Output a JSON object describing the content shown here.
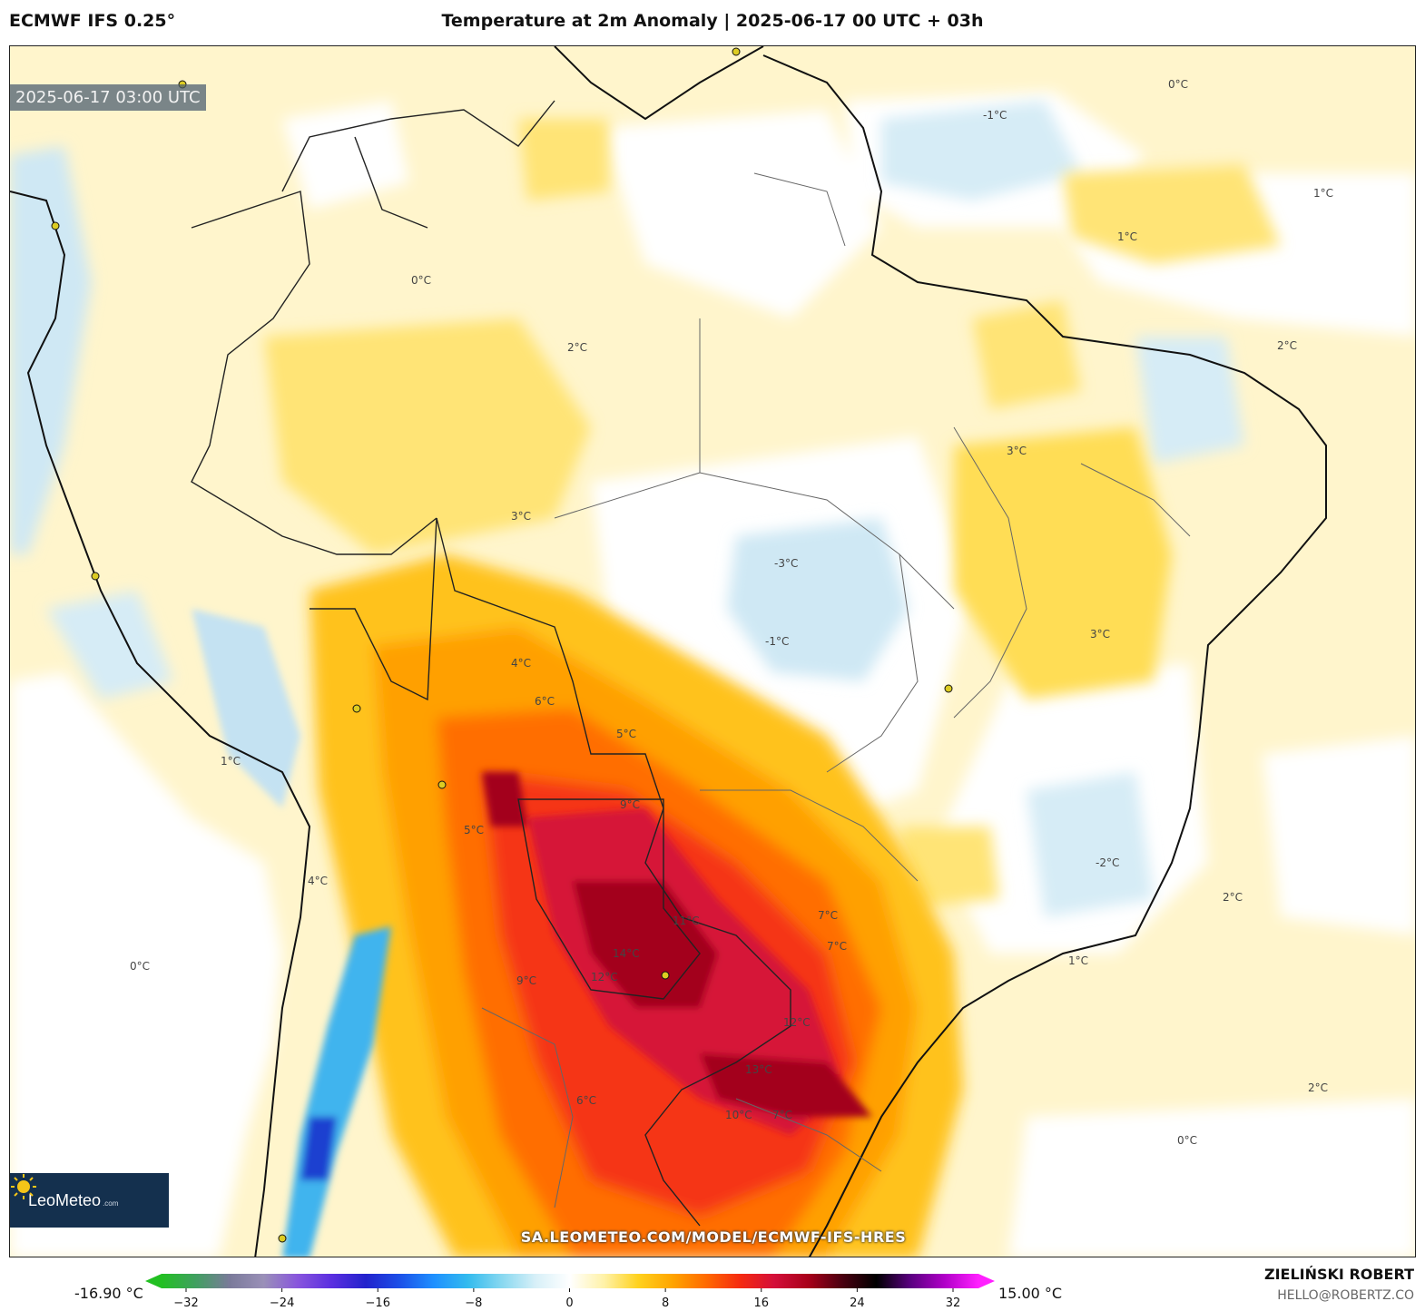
{
  "header": {
    "model": "ECMWF IFS 0.25°",
    "title": "Temperature at 2m Anomaly | 2025-06-17 00 UTC + 03h"
  },
  "map": {
    "timestamp": "2025-06-17 03:00 UTC",
    "watermark_url": "SA.LEOMETEO.COM/MODEL/ECMWF-IFS-HRES",
    "logo": {
      "name": "LeoMeteo",
      "suffix": ".com"
    },
    "contour_labels": [
      "14°C",
      "13°C",
      "12°C",
      "12°C",
      "11°C",
      "10°C",
      "9°C",
      "9°C",
      "7°C",
      "7°C",
      "7°C",
      "6°C",
      "6°C",
      "5°C",
      "5°C",
      "4°C",
      "4°C",
      "3°C",
      "3°C",
      "3°C",
      "2°C",
      "2°C",
      "2°C",
      "2°C",
      "1°C",
      "1°C",
      "1°C",
      "1°C",
      "0°C",
      "0°C",
      "0°C",
      "0°C",
      "-1°C",
      "-1°C",
      "-2°C",
      "-3°C"
    ]
  },
  "colorbar": {
    "min_label": "-16.90 °C",
    "max_label": "15.00 °C",
    "ticks": [
      "−32",
      "−24",
      "−16",
      "−8",
      "0",
      "8",
      "16",
      "24",
      "32"
    ],
    "stops": [
      "#22c022",
      "#40a060",
      "#7a7a9a",
      "#9a90b8",
      "#8855dd",
      "#5a2ee0",
      "#2222cc",
      "#1c50e8",
      "#1e90ff",
      "#33bbee",
      "#88d8f0",
      "#d8f0f8",
      "#ffffff",
      "#fff2a8",
      "#ffd21e",
      "#ffa500",
      "#ff6a00",
      "#f52a10",
      "#d40f3a",
      "#a8001a",
      "#4a0010",
      "#000000",
      "#5a0080",
      "#b000c8",
      "#ff20ff"
    ]
  },
  "credits": {
    "author": "ZIELIŃSKI ROBERT",
    "email": "HELLO@ROBERTZ.CO"
  }
}
